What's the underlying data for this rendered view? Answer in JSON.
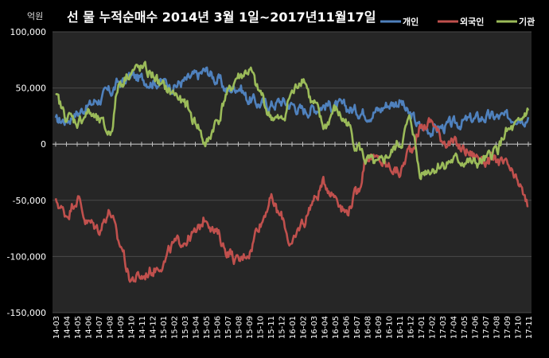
{
  "header": {
    "title": "선 물 누적순매수 2014년 3월 1일~2017년11월17일",
    "unit": "억원"
  },
  "colors": {
    "background": "#000000",
    "plot_background": "#262626",
    "grid": "#4a4a4a",
    "axis": "#bfbfbf",
    "individual": "#4f81bd",
    "foreign": "#c0504d",
    "institution": "#9bbb59"
  },
  "chart_data": {
    "type": "line",
    "title": "선 물 누적순매수 2014년 3월 1일~2017년11월17일",
    "ylabel": "억원",
    "xlabel": "",
    "ylim": [
      -150000,
      100000
    ],
    "yticks": [
      100000,
      50000,
      0,
      -50000,
      -100000,
      -150000
    ],
    "ytick_labels": [
      "100,000",
      "50,000",
      "0",
      "-50,000",
      "-100,000",
      "-150,000"
    ],
    "grid": true,
    "legend_position": "top-right",
    "x": [
      "14-03",
      "14-04",
      "14-05",
      "14-06",
      "14-07",
      "14-08",
      "14-09",
      "14-10",
      "14-11",
      "14-12",
      "15-01",
      "15-02",
      "15-03",
      "15-04",
      "15-05",
      "15-06",
      "15-07",
      "15-08",
      "15-09",
      "15-10",
      "15-11",
      "15-12",
      "16-01",
      "16-02",
      "16-03",
      "16-04",
      "16-05",
      "16-06",
      "16-07",
      "16-08",
      "16-09",
      "16-10",
      "16-11",
      "16-12",
      "17-01",
      "17-02",
      "17-03",
      "17-04",
      "17-05",
      "17-06",
      "17-07",
      "17-08",
      "17-09",
      "17-10",
      "17-11"
    ],
    "series": [
      {
        "name": "개인",
        "color": "#4f81bd",
        "values": [
          20000,
          22000,
          28000,
          34000,
          40000,
          46000,
          55000,
          60000,
          58000,
          56000,
          55000,
          52000,
          56000,
          60000,
          65000,
          58000,
          48000,
          52000,
          40000,
          36000,
          35000,
          38000,
          35000,
          30000,
          32000,
          35000,
          34000,
          32000,
          30000,
          28000,
          30000,
          36000,
          38000,
          25000,
          15000,
          13000,
          15000,
          17000,
          20000,
          22000,
          24000,
          24000,
          23000,
          26000,
          24000
        ]
      },
      {
        "name": "외국인",
        "color": "#c0504d",
        "values": [
          -52000,
          -62000,
          -48000,
          -70000,
          -75000,
          -60000,
          -90000,
          -120000,
          -118000,
          -112000,
          -105000,
          -90000,
          -85000,
          -80000,
          -65000,
          -80000,
          -95000,
          -105000,
          -95000,
          -70000,
          -50000,
          -65000,
          -90000,
          -70000,
          -50000,
          -35000,
          -45000,
          -60000,
          -45000,
          -10000,
          -15000,
          -20000,
          -25000,
          -5000,
          15000,
          20000,
          5000,
          0,
          -5000,
          -10000,
          -15000,
          -15000,
          -20000,
          -35000,
          -55000
        ]
      },
      {
        "name": "기관",
        "color": "#9bbb59",
        "values": [
          40000,
          25000,
          20000,
          28000,
          20000,
          10000,
          55000,
          65000,
          67000,
          62000,
          50000,
          45000,
          35000,
          20000,
          0,
          20000,
          45000,
          60000,
          65000,
          45000,
          25000,
          20000,
          45000,
          60000,
          35000,
          15000,
          30000,
          20000,
          0,
          -15000,
          -20000,
          -10000,
          0,
          20000,
          -25000,
          -22000,
          -18000,
          -15000,
          -15000,
          -18000,
          -15000,
          -5000,
          10000,
          15000,
          30000
        ]
      }
    ]
  }
}
